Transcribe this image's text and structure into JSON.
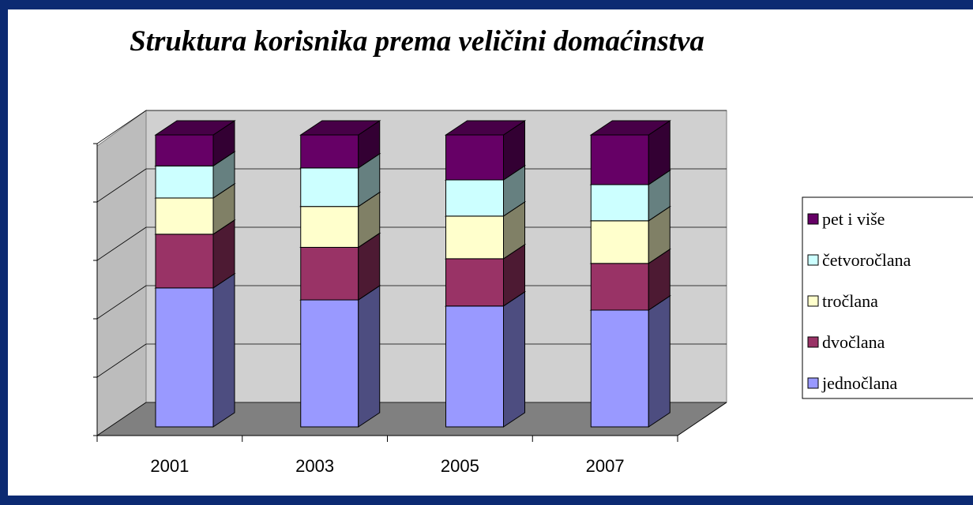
{
  "chart_data": {
    "type": "bar3d_stacked",
    "title": "Struktura korisnika prema veličini domaćinstva",
    "categories": [
      "2001",
      "2003",
      "2005",
      "2007"
    ],
    "series": [
      {
        "name": "jednočlana",
        "color": "#9999ff",
        "values": [
          47.6,
          43.5,
          41.4,
          40
        ]
      },
      {
        "name": "dvočlana",
        "color": "#993366",
        "values": [
          18.4,
          18,
          16.2,
          16
        ]
      },
      {
        "name": "tročlana",
        "color": "#ffffcc",
        "values": [
          12.4,
          14,
          14.6,
          14.6
        ]
      },
      {
        "name": "četvoročlana",
        "color": "#ccffff",
        "values": [
          11,
          13.2,
          12.4,
          12.4
        ]
      },
      {
        "name": "pet i više",
        "color": "#660066",
        "values": [
          10.6,
          11.3,
          15.4,
          17
        ]
      }
    ],
    "ylim": [
      0,
      100
    ],
    "yticks": [
      0,
      20,
      40,
      60,
      80,
      100
    ],
    "grid": true,
    "legend": "right"
  }
}
